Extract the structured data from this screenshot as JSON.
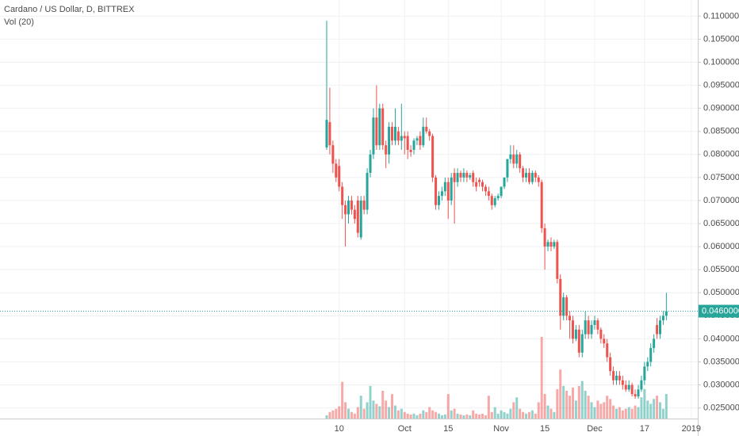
{
  "chart_data": {
    "type": "candlestick",
    "title": "Cardano / US Dollar, D, BITTREX",
    "subtitle": "Vol (20)",
    "up_color": "#26a69a",
    "down_color": "#ef5350",
    "grid": true,
    "ylim": [
      0.0227,
      0.1135
    ],
    "yticks": [
      {
        "value": 0.025,
        "label": "0.02500000"
      },
      {
        "value": 0.03,
        "label": "0.03000000"
      },
      {
        "value": 0.035,
        "label": "0.03500000"
      },
      {
        "value": 0.04,
        "label": "0.04000000"
      },
      {
        "value": 0.045,
        "label": "0.04500000"
      },
      {
        "value": 0.05,
        "label": "0.05000000"
      },
      {
        "value": 0.055,
        "label": "0.05500000"
      },
      {
        "value": 0.06,
        "label": "0.06000000"
      },
      {
        "value": 0.065,
        "label": "0.06500000"
      },
      {
        "value": 0.07,
        "label": "0.07000000"
      },
      {
        "value": 0.075,
        "label": "0.07500000"
      },
      {
        "value": 0.08,
        "label": "0.08000000"
      },
      {
        "value": 0.085,
        "label": "0.08500000"
      },
      {
        "value": 0.09,
        "label": "0.09000000"
      },
      {
        "value": 0.095,
        "label": "0.09500000"
      },
      {
        "value": 0.1,
        "label": "0.10000000"
      },
      {
        "value": 0.105,
        "label": "0.10500000"
      },
      {
        "value": 0.11,
        "label": "0.11000000"
      }
    ],
    "last_price": {
      "value": 0.046,
      "label": "0.04600000"
    },
    "categories": [
      null,
      null,
      null,
      null,
      "10",
      null,
      null,
      null,
      null,
      null,
      null,
      null,
      null,
      null,
      null,
      null,
      null,
      null,
      null,
      null,
      null,
      null,
      null,
      null,
      null,
      "Oct",
      null,
      null,
      null,
      null,
      null,
      null,
      null,
      null,
      null,
      null,
      null,
      null,
      null,
      "15",
      null,
      null,
      null,
      null,
      null,
      null,
      null,
      null,
      null,
      null,
      null,
      null,
      null,
      null,
      null,
      null,
      "Nov",
      null,
      null,
      null,
      null,
      null,
      null,
      null,
      null,
      null,
      null,
      null,
      null,
      null,
      "15",
      null,
      null,
      null,
      null,
      null,
      null,
      null,
      null,
      null,
      null,
      null,
      null,
      null,
      null,
      null,
      "Dec",
      null,
      null,
      null,
      null,
      null,
      null,
      null,
      null,
      null,
      null,
      null,
      null,
      null,
      null,
      null,
      "17",
      null,
      null,
      null,
      null,
      null,
      null,
      null,
      null,
      null,
      null,
      null,
      null,
      null,
      null,
      "2019"
    ],
    "open": [
      0.0815,
      0.087,
      0.082,
      0.078,
      0.0775,
      0.073,
      0.069,
      0.067,
      0.07,
      0.068,
      0.07,
      0.062,
      0.07,
      0.068,
      0.076,
      0.08,
      0.088,
      0.082,
      0.09,
      0.082,
      0.08,
      0.086,
      0.083,
      0.085,
      0.083,
      0.084,
      0.084,
      0.081,
      0.081,
      0.083,
      0.084,
      0.082,
      0.086,
      0.085,
      0.084,
      0.075,
      0.069,
      0.071,
      0.072,
      0.074,
      0.07,
      0.076,
      0.074,
      0.076,
      0.075,
      0.076,
      0.075,
      0.076,
      0.074,
      0.0745,
      0.074,
      0.073,
      0.072,
      0.071,
      0.069,
      0.0705,
      0.071,
      0.073,
      0.075,
      0.079,
      0.08,
      0.078,
      0.08,
      0.077,
      0.075,
      0.076,
      0.074,
      0.076,
      0.075,
      0.074,
      0.064,
      0.06,
      0.061,
      0.06,
      0.061,
      0.053,
      0.045,
      0.049,
      0.045,
      0.044,
      0.04,
      0.042,
      0.037,
      0.041,
      0.044,
      0.041,
      0.043,
      0.044,
      0.042,
      0.04,
      0.039,
      0.036,
      0.033,
      0.031,
      0.032,
      0.031,
      0.03,
      0.029,
      0.03,
      0.028,
      0.0275,
      0.029,
      0.031,
      0.034,
      0.035,
      0.038,
      0.043,
      0.041,
      0.044,
      0.045,
      null,
      null,
      null,
      null,
      null,
      null,
      null,
      null
    ],
    "high": [
      0.109,
      0.0945,
      0.083,
      0.079,
      0.079,
      0.074,
      0.07,
      0.071,
      0.071,
      0.069,
      0.071,
      0.071,
      0.071,
      0.077,
      0.081,
      0.09,
      0.095,
      0.091,
      0.091,
      0.083,
      0.087,
      0.087,
      0.09,
      0.086,
      0.091,
      0.085,
      0.085,
      0.082,
      0.0835,
      0.084,
      0.085,
      0.088,
      0.088,
      0.0855,
      0.0845,
      0.0755,
      0.072,
      0.073,
      0.075,
      0.075,
      0.076,
      0.077,
      0.077,
      0.0765,
      0.077,
      0.0765,
      0.076,
      0.0765,
      0.075,
      0.075,
      0.0745,
      0.0735,
      0.073,
      0.0715,
      0.071,
      0.0715,
      0.073,
      0.075,
      0.079,
      0.082,
      0.082,
      0.081,
      0.0805,
      0.0775,
      0.077,
      0.077,
      0.0765,
      0.0765,
      0.0755,
      0.0745,
      0.065,
      0.0615,
      0.062,
      0.0615,
      0.0615,
      0.054,
      0.05,
      0.0495,
      0.046,
      0.045,
      0.043,
      0.043,
      0.042,
      0.046,
      0.045,
      0.044,
      0.045,
      0.0445,
      0.0425,
      0.041,
      0.04,
      0.037,
      0.034,
      0.033,
      0.033,
      0.032,
      0.031,
      0.031,
      0.0305,
      0.029,
      0.03,
      0.032,
      0.035,
      0.036,
      0.039,
      0.041,
      0.0445,
      0.045,
      0.046,
      0.05,
      null,
      null,
      null,
      null,
      null,
      null,
      null,
      null
    ],
    "low": [
      0.081,
      0.08,
      0.076,
      0.074,
      0.072,
      0.066,
      0.06,
      0.065,
      0.067,
      0.065,
      0.062,
      0.0615,
      0.067,
      0.067,
      0.075,
      0.079,
      0.081,
      0.081,
      0.081,
      0.077,
      0.078,
      0.082,
      0.082,
      0.082,
      0.081,
      0.08,
      0.079,
      0.0795,
      0.08,
      0.082,
      0.081,
      0.0815,
      0.0845,
      0.083,
      0.074,
      0.068,
      0.068,
      0.07,
      0.071,
      0.066,
      0.069,
      0.065,
      0.073,
      0.074,
      0.074,
      0.074,
      0.0745,
      0.073,
      0.072,
      0.073,
      0.072,
      0.071,
      0.07,
      0.068,
      0.0685,
      0.07,
      0.0705,
      0.0725,
      0.074,
      0.078,
      0.077,
      0.077,
      0.076,
      0.074,
      0.074,
      0.0735,
      0.0735,
      0.074,
      0.073,
      0.063,
      0.055,
      0.059,
      0.059,
      0.0595,
      0.052,
      0.042,
      0.044,
      0.044,
      0.04,
      0.039,
      0.0395,
      0.036,
      0.036,
      0.04,
      0.04,
      0.04,
      0.042,
      0.041,
      0.039,
      0.038,
      0.035,
      0.032,
      0.03,
      0.03,
      0.03,
      0.029,
      0.0285,
      0.0285,
      0.0275,
      0.027,
      0.027,
      0.0285,
      0.03,
      0.033,
      0.034,
      0.037,
      0.04,
      0.04,
      0.043,
      0.044,
      null,
      null,
      null,
      null,
      null,
      null,
      null,
      null
    ],
    "close": [
      0.0875,
      0.082,
      0.078,
      0.075,
      0.073,
      0.069,
      0.067,
      0.07,
      0.068,
      0.066,
      0.063,
      0.07,
      0.068,
      0.076,
      0.08,
      0.088,
      0.082,
      0.09,
      0.082,
      0.08,
      0.086,
      0.083,
      0.086,
      0.083,
      0.084,
      0.0835,
      0.081,
      0.0805,
      0.083,
      0.0835,
      0.082,
      0.086,
      0.085,
      0.084,
      0.075,
      0.069,
      0.071,
      0.072,
      0.074,
      0.07,
      0.075,
      0.074,
      0.076,
      0.075,
      0.076,
      0.075,
      0.0755,
      0.074,
      0.073,
      0.074,
      0.073,
      0.072,
      0.071,
      0.069,
      0.0705,
      0.071,
      0.073,
      0.075,
      0.079,
      0.08,
      0.078,
      0.08,
      0.077,
      0.075,
      0.076,
      0.074,
      0.076,
      0.075,
      0.074,
      0.064,
      0.06,
      0.061,
      0.06,
      0.061,
      0.053,
      0.045,
      0.049,
      0.045,
      0.044,
      0.04,
      0.042,
      0.037,
      0.041,
      0.044,
      0.041,
      0.043,
      0.044,
      0.042,
      0.04,
      0.039,
      0.036,
      0.033,
      0.031,
      0.032,
      0.031,
      0.03,
      0.029,
      0.03,
      0.028,
      0.0275,
      0.029,
      0.031,
      0.034,
      0.035,
      0.038,
      0.04,
      0.041,
      0.044,
      0.045,
      0.046,
      null,
      null,
      null,
      null,
      null,
      null,
      null,
      null
    ],
    "volume": [
      4,
      8,
      10,
      12,
      15,
      45,
      20,
      12,
      8,
      6,
      14,
      28,
      12,
      20,
      40,
      22,
      18,
      15,
      34,
      22,
      14,
      30,
      16,
      10,
      12,
      8,
      6,
      5,
      6,
      4,
      6,
      10,
      8,
      14,
      10,
      8,
      6,
      4,
      5,
      30,
      10,
      12,
      6,
      5,
      4,
      5,
      4,
      10,
      6,
      5,
      6,
      4,
      28,
      8,
      14,
      6,
      10,
      8,
      6,
      12,
      20,
      26,
      12,
      8,
      6,
      8,
      10,
      6,
      20,
      100,
      30,
      16,
      12,
      8,
      36,
      60,
      40,
      34,
      28,
      38,
      22,
      40,
      46,
      34,
      28,
      20,
      14,
      22,
      18,
      20,
      28,
      24,
      16,
      12,
      14,
      10,
      12,
      14,
      12,
      16,
      14,
      26,
      36,
      22,
      18,
      24,
      28,
      20,
      12,
      30,
      null,
      null,
      null,
      null,
      null,
      null,
      null,
      null
    ]
  }
}
